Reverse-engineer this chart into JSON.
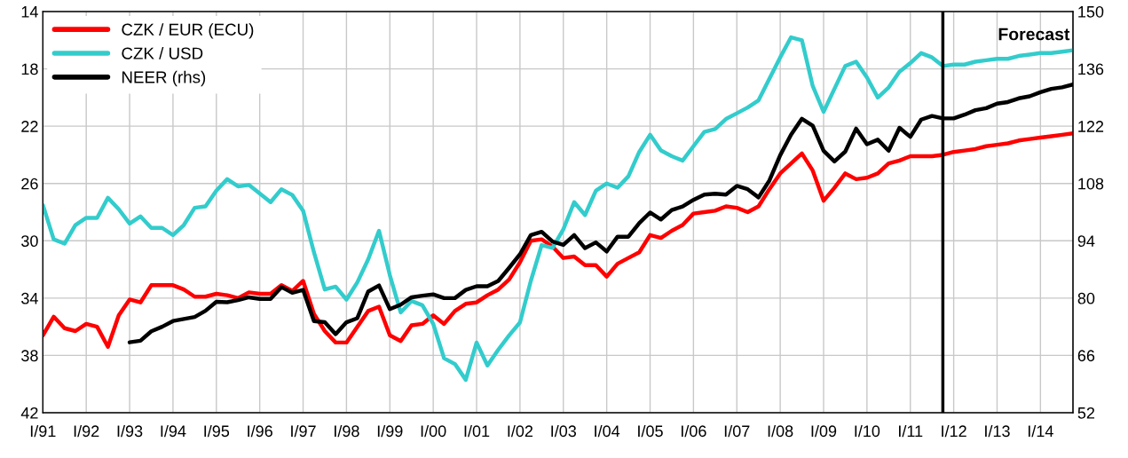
{
  "chart_data": {
    "type": "line",
    "categories": [
      "I/91",
      null,
      null,
      null,
      "I/92",
      null,
      null,
      null,
      "I/93",
      null,
      null,
      null,
      "I/94",
      null,
      null,
      null,
      "I/95",
      null,
      null,
      null,
      "I/96",
      null,
      null,
      null,
      "I/97",
      null,
      null,
      null,
      "I/98",
      null,
      null,
      null,
      "I/99",
      null,
      null,
      null,
      "I/00",
      null,
      null,
      null,
      "I/01",
      null,
      null,
      null,
      "I/02",
      null,
      null,
      null,
      "I/03",
      null,
      null,
      null,
      "I/04",
      null,
      null,
      null,
      "I/05",
      null,
      null,
      null,
      "I/06",
      null,
      null,
      null,
      "I/07",
      null,
      null,
      null,
      "I/08",
      null,
      null,
      null,
      "I/09",
      null,
      null,
      null,
      "I/10",
      null,
      null,
      null,
      "I/11",
      null,
      null,
      null,
      "I/12",
      null,
      null,
      null,
      "I/13",
      null,
      null,
      null,
      "I/14",
      null,
      null,
      null
    ],
    "series": [
      {
        "name": "CZK / EUR (ECU)",
        "color": "#ff0000",
        "values": [
          36.6,
          35.3,
          36.1,
          36.3,
          35.8,
          36.0,
          37.4,
          35.2,
          34.1,
          34.3,
          33.1,
          33.1,
          33.1,
          33.4,
          33.9,
          33.9,
          33.7,
          33.8,
          34.0,
          33.6,
          33.7,
          33.7,
          33.1,
          33.5,
          32.8,
          35.1,
          36.3,
          37.1,
          37.1,
          36.0,
          34.9,
          34.6,
          36.6,
          37.0,
          35.9,
          35.8,
          35.2,
          35.8,
          34.9,
          34.4,
          34.3,
          33.8,
          33.4,
          32.7,
          31.5,
          30.0,
          29.9,
          30.4,
          31.2,
          31.1,
          31.7,
          31.7,
          32.5,
          31.6,
          31.2,
          30.8,
          29.6,
          29.8,
          29.3,
          28.9,
          28.1,
          28.0,
          27.9,
          27.6,
          27.7,
          28.0,
          27.6,
          26.4,
          25.3,
          24.6,
          23.9,
          25.1,
          27.2,
          26.3,
          25.3,
          25.7,
          25.6,
          25.3,
          24.6,
          24.4,
          24.1,
          24.1,
          24.1,
          24.0,
          23.8,
          23.7,
          23.6,
          23.4,
          23.3,
          23.2,
          23.0,
          22.9,
          22.8,
          22.7,
          22.6,
          22.5
        ]
      },
      {
        "name": "CZK / USD",
        "color": "#33cccc",
        "values": [
          27.5,
          29.9,
          30.2,
          28.9,
          28.4,
          28.4,
          27.0,
          27.8,
          28.8,
          28.3,
          29.1,
          29.1,
          29.6,
          28.9,
          27.7,
          27.6,
          26.5,
          25.7,
          26.2,
          26.1,
          26.7,
          27.3,
          26.4,
          26.8,
          27.9,
          30.8,
          33.4,
          33.2,
          34.1,
          32.9,
          31.3,
          29.3,
          32.4,
          35.0,
          34.2,
          34.5,
          35.8,
          38.2,
          38.6,
          39.7,
          37.1,
          38.7,
          37.6,
          36.6,
          35.7,
          32.8,
          30.3,
          30.5,
          29.2,
          27.3,
          28.2,
          26.5,
          26.0,
          26.3,
          25.5,
          23.8,
          22.6,
          23.7,
          24.1,
          24.4,
          23.4,
          22.4,
          22.2,
          21.5,
          21.1,
          20.7,
          20.2,
          18.7,
          17.2,
          15.8,
          16.0,
          19.2,
          21.0,
          19.4,
          17.8,
          17.5,
          18.6,
          20.0,
          19.3,
          18.2,
          17.6,
          16.9,
          17.2,
          17.8,
          17.7,
          17.7,
          17.5,
          17.4,
          17.3,
          17.3,
          17.1,
          17.0,
          16.9,
          16.9,
          16.8,
          16.7
        ]
      },
      {
        "name": "NEER (rhs)",
        "color": "#000000",
        "axis": "y2",
        "values": [
          null,
          null,
          null,
          null,
          null,
          null,
          null,
          null,
          69.2,
          69.6,
          71.9,
          73.0,
          74.4,
          74.9,
          75.4,
          76.9,
          79.1,
          79.0,
          79.5,
          80.2,
          79.8,
          79.8,
          82.7,
          81.3,
          82.0,
          74.4,
          74.1,
          71.2,
          74.1,
          75.1,
          81.6,
          83.1,
          77.3,
          78.4,
          80.2,
          80.6,
          80.9,
          80.0,
          80.0,
          82.0,
          82.9,
          82.9,
          84.2,
          87.4,
          90.7,
          95.4,
          96.2,
          93.8,
          93.0,
          95.4,
          92.2,
          93.6,
          91.4,
          95.0,
          95.0,
          98.3,
          100.9,
          99.2,
          101.5,
          102.4,
          104.0,
          105.3,
          105.5,
          105.3,
          107.4,
          106.6,
          104.6,
          108.7,
          114.9,
          119.9,
          123.8,
          122.1,
          116.0,
          113.4,
          115.8,
          121.4,
          117.6,
          118.7,
          116.0,
          121.6,
          119.4,
          123.6,
          124.5,
          123.9,
          123.9,
          124.8,
          125.9,
          126.4,
          127.5,
          127.9,
          128.8,
          129.3,
          130.3,
          131.1,
          131.5,
          132.2
        ]
      }
    ],
    "ylim": [
      42,
      14
    ],
    "yticks": [
      14,
      18,
      22,
      26,
      30,
      34,
      38,
      42
    ],
    "y2lim": [
      52,
      150
    ],
    "y2ticks": [
      52,
      66,
      80,
      94,
      108,
      122,
      136,
      150
    ],
    "annotations": [
      "Forecast"
    ],
    "grid": true,
    "legend": "top left",
    "line_style": "solid",
    "marker": "none"
  }
}
